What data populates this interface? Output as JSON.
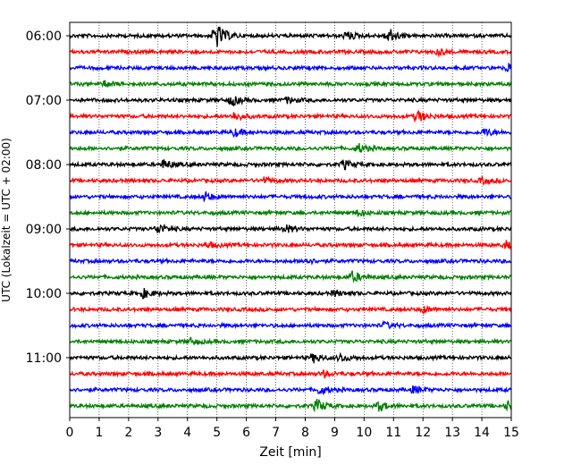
{
  "chart_data": {
    "type": "line",
    "xlabel": "Zeit  [min]",
    "ylabel": "UTC (Lokalzeit = UTC + 02:00)",
    "xlim": [
      0,
      15
    ],
    "x_ticks": [
      "0",
      "1",
      "2",
      "3",
      "4",
      "5",
      "6",
      "7",
      "8",
      "9",
      "10",
      "11",
      "12",
      "13",
      "14",
      "15"
    ],
    "y_ticks": [
      "06:00",
      "07:00",
      "08:00",
      "09:00",
      "10:00",
      "11:00"
    ],
    "grid": "vertical dotted",
    "trace_interval_minutes": 15,
    "color_cycle": [
      "#000000",
      "#ff0000",
      "#0000ff",
      "#008000"
    ],
    "traces": [
      {
        "time": "06:00",
        "color": "#000000",
        "events": [
          {
            "t": 4.95,
            "amp": 1.0
          },
          {
            "t": 9.4,
            "amp": 0.3
          },
          {
            "t": 10.8,
            "amp": 0.55
          }
        ]
      },
      {
        "time": "06:15",
        "color": "#ff0000",
        "events": [
          {
            "t": 12.5,
            "amp": 0.2
          }
        ]
      },
      {
        "time": "06:30",
        "color": "#0000ff",
        "events": [
          {
            "t": 14.9,
            "amp": 0.3
          }
        ]
      },
      {
        "time": "06:45",
        "color": "#008000",
        "events": [
          {
            "t": 1.2,
            "amp": 0.2
          }
        ]
      },
      {
        "time": "07:00",
        "color": "#000000",
        "events": [
          {
            "t": 5.5,
            "amp": 0.35
          },
          {
            "t": 7.4,
            "amp": 0.2
          }
        ]
      },
      {
        "time": "07:15",
        "color": "#ff0000",
        "events": [
          {
            "t": 5.6,
            "amp": 0.3
          },
          {
            "t": 11.8,
            "amp": 0.4
          }
        ]
      },
      {
        "time": "07:30",
        "color": "#0000ff",
        "events": [
          {
            "t": 5.6,
            "amp": 0.25
          },
          {
            "t": 14.1,
            "amp": 0.25
          }
        ]
      },
      {
        "time": "07:45",
        "color": "#008000",
        "events": [
          {
            "t": 9.8,
            "amp": 0.3
          }
        ]
      },
      {
        "time": "08:00",
        "color": "#000000",
        "events": [
          {
            "t": 3.2,
            "amp": 0.3
          },
          {
            "t": 9.3,
            "amp": 0.3
          }
        ]
      },
      {
        "time": "08:15",
        "color": "#ff0000",
        "events": [
          {
            "t": 6.6,
            "amp": 0.2
          },
          {
            "t": 14.0,
            "amp": 0.2
          }
        ]
      },
      {
        "time": "08:30",
        "color": "#0000ff",
        "events": [
          {
            "t": 4.6,
            "amp": 0.3
          }
        ]
      },
      {
        "time": "08:45",
        "color": "#008000",
        "events": [
          {
            "t": 9.8,
            "amp": 0.2
          }
        ]
      },
      {
        "time": "09:00",
        "color": "#000000",
        "events": [
          {
            "t": 3.0,
            "amp": 0.35
          },
          {
            "t": 7.3,
            "amp": 0.3
          }
        ]
      },
      {
        "time": "09:15",
        "color": "#ff0000",
        "events": [
          {
            "t": 4.7,
            "amp": 0.2
          },
          {
            "t": 14.8,
            "amp": 0.25
          }
        ]
      },
      {
        "time": "09:30",
        "color": "#0000ff",
        "events": [
          {
            "t": 8.0,
            "amp": 0.2
          }
        ]
      },
      {
        "time": "09:45",
        "color": "#008000",
        "events": [
          {
            "t": 9.6,
            "amp": 0.35
          }
        ]
      },
      {
        "time": "10:00",
        "color": "#000000",
        "events": [
          {
            "t": 2.5,
            "amp": 0.3
          },
          {
            "t": 9.0,
            "amp": 0.2
          }
        ]
      },
      {
        "time": "10:15",
        "color": "#ff0000",
        "events": [
          {
            "t": 12.0,
            "amp": 0.2
          }
        ]
      },
      {
        "time": "10:30",
        "color": "#0000ff",
        "events": [
          {
            "t": 10.7,
            "amp": 0.2
          }
        ]
      },
      {
        "time": "10:45",
        "color": "#008000",
        "events": [
          {
            "t": 4.1,
            "amp": 0.2
          }
        ]
      },
      {
        "time": "11:00",
        "color": "#000000",
        "events": [
          {
            "t": 8.3,
            "amp": 0.3
          },
          {
            "t": 9.2,
            "amp": 0.25
          }
        ]
      },
      {
        "time": "11:15",
        "color": "#ff0000",
        "events": [
          {
            "t": 8.6,
            "amp": 0.2
          }
        ]
      },
      {
        "time": "11:30",
        "color": "#0000ff",
        "events": [
          {
            "t": 8.5,
            "amp": 0.3
          },
          {
            "t": 11.7,
            "amp": 0.25
          }
        ]
      },
      {
        "time": "11:45",
        "color": "#008000",
        "events": [
          {
            "t": 8.4,
            "amp": 0.45
          },
          {
            "t": 10.5,
            "amp": 0.3
          },
          {
            "t": 14.9,
            "amp": 0.35
          }
        ]
      }
    ]
  }
}
